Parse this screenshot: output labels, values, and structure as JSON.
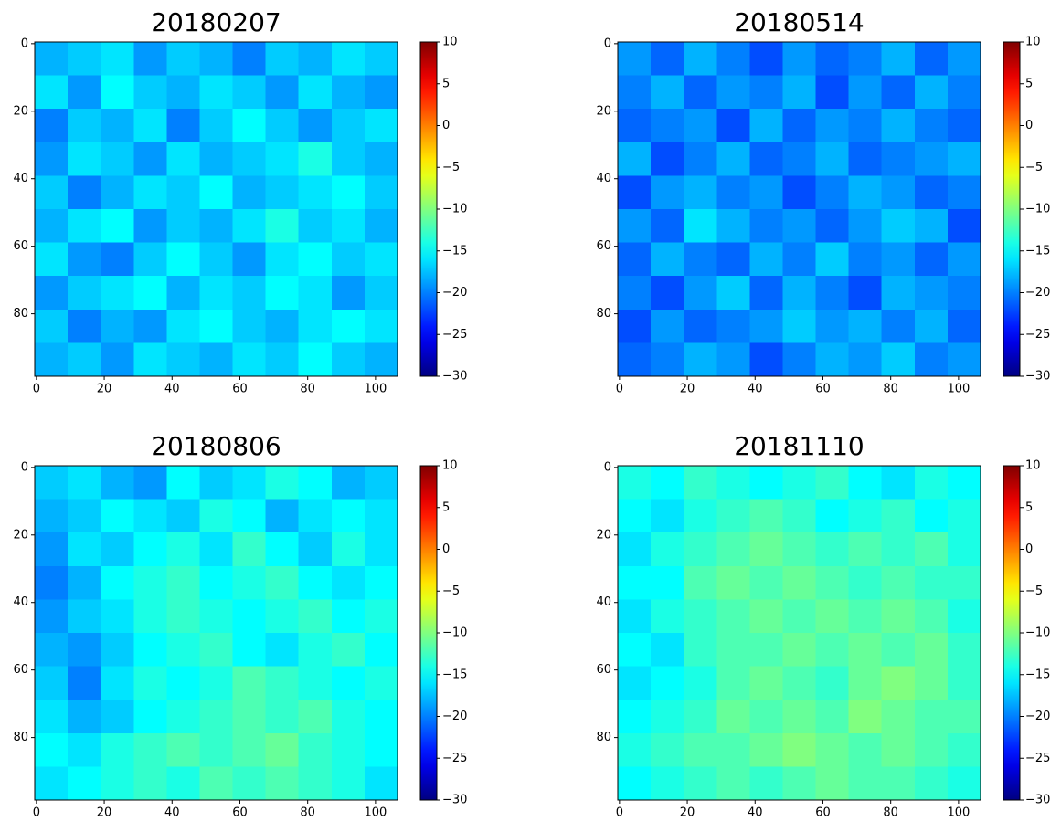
{
  "chart_data": [
    {
      "type": "heatmap",
      "title": "20180207",
      "colormap": "jet",
      "clim": [
        -30,
        10
      ],
      "xlim": [
        -0.5,
        106.5
      ],
      "ylim": [
        98.5,
        -0.5
      ],
      "xticks": [
        0,
        20,
        40,
        60,
        80,
        100
      ],
      "yticks": [
        0,
        20,
        40,
        60,
        80
      ],
      "cticks": [
        10,
        5,
        0,
        {
          "value": -5,
          "label": "−5"
        },
        {
          "value": -10,
          "label": "−10"
        },
        {
          "value": -15,
          "label": "−15"
        },
        {
          "value": -20,
          "label": "−20"
        },
        {
          "value": -25,
          "label": "−25"
        },
        {
          "value": -30,
          "label": "−30"
        }
      ],
      "z": [
        [
          -18,
          -17,
          -16,
          -19,
          -17,
          -18,
          -20,
          -17,
          -18,
          -16,
          -17
        ],
        [
          -16,
          -19,
          -15,
          -17,
          -18,
          -16,
          -17,
          -19,
          -16,
          -18,
          -19
        ],
        [
          -20,
          -17,
          -18,
          -16,
          -20,
          -17,
          -15,
          -17,
          -19,
          -17,
          -16
        ],
        [
          -19,
          -16,
          -17,
          -19,
          -16,
          -18,
          -17,
          -16,
          -14,
          -17,
          -18
        ],
        [
          -17,
          -20,
          -18,
          -16,
          -17,
          -15,
          -18,
          -17,
          -16,
          -15,
          -17
        ],
        [
          -18,
          -16,
          -15,
          -19,
          -17,
          -18,
          -16,
          -14,
          -17,
          -16,
          -18
        ],
        [
          -16,
          -19,
          -20,
          -17,
          -15,
          -17,
          -19,
          -16,
          -15,
          -17,
          -16
        ],
        [
          -19,
          -17,
          -16,
          -15,
          -18,
          -16,
          -17,
          -15,
          -16,
          -19,
          -17
        ],
        [
          -17,
          -20,
          -18,
          -19,
          -16,
          -15,
          -17,
          -18,
          -16,
          -15,
          -16
        ],
        [
          -18,
          -17,
          -19,
          -16,
          -17,
          -18,
          -16,
          -17,
          -15,
          -17,
          -18
        ]
      ]
    },
    {
      "type": "heatmap",
      "title": "20180514",
      "colormap": "jet",
      "clim": [
        -30,
        10
      ],
      "xlim": [
        -0.5,
        106.5
      ],
      "ylim": [
        98.5,
        -0.5
      ],
      "xticks": [
        0,
        20,
        40,
        60,
        80,
        100
      ],
      "yticks": [
        0,
        20,
        40,
        60,
        80
      ],
      "cticks": [
        10,
        5,
        0,
        {
          "value": -5,
          "label": "−5"
        },
        {
          "value": -10,
          "label": "−10"
        },
        {
          "value": -15,
          "label": "−15"
        },
        {
          "value": -20,
          "label": "−20"
        },
        {
          "value": -25,
          "label": "−25"
        },
        {
          "value": -30,
          "label": "−30"
        }
      ],
      "z": [
        [
          -19,
          -21,
          -18,
          -20,
          -22,
          -19,
          -21,
          -20,
          -18,
          -21,
          -19
        ],
        [
          -20,
          -18,
          -21,
          -19,
          -20,
          -18,
          -22,
          -19,
          -21,
          -18,
          -20
        ],
        [
          -21,
          -20,
          -19,
          -22,
          -18,
          -21,
          -19,
          -20,
          -18,
          -20,
          -21
        ],
        [
          -18,
          -22,
          -20,
          -18,
          -21,
          -20,
          -18,
          -21,
          -20,
          -19,
          -18
        ],
        [
          -22,
          -19,
          -18,
          -20,
          -19,
          -22,
          -20,
          -18,
          -19,
          -21,
          -20
        ],
        [
          -19,
          -21,
          -16,
          -18,
          -20,
          -19,
          -21,
          -19,
          -17,
          -18,
          -22
        ],
        [
          -21,
          -18,
          -20,
          -21,
          -18,
          -20,
          -17,
          -20,
          -19,
          -21,
          -19
        ],
        [
          -20,
          -22,
          -19,
          -17,
          -21,
          -18,
          -20,
          -22,
          -18,
          -19,
          -20
        ],
        [
          -22,
          -19,
          -21,
          -20,
          -19,
          -17,
          -19,
          -18,
          -20,
          -18,
          -21
        ],
        [
          -21,
          -20,
          -18,
          -19,
          -22,
          -20,
          -18,
          -19,
          -17,
          -20,
          -19
        ]
      ]
    },
    {
      "type": "heatmap",
      "title": "20180806",
      "colormap": "jet",
      "clim": [
        -30,
        10
      ],
      "xlim": [
        -0.5,
        106.5
      ],
      "ylim": [
        98.5,
        -0.5
      ],
      "xticks": [
        0,
        20,
        40,
        60,
        80,
        100
      ],
      "yticks": [
        0,
        20,
        40,
        60,
        80
      ],
      "cticks": [
        10,
        5,
        0,
        {
          "value": -5,
          "label": "−5"
        },
        {
          "value": -10,
          "label": "−10"
        },
        {
          "value": -15,
          "label": "−15"
        },
        {
          "value": -20,
          "label": "−20"
        },
        {
          "value": -25,
          "label": "−25"
        },
        {
          "value": -30,
          "label": "−30"
        }
      ],
      "z": [
        [
          -17,
          -16,
          -18,
          -19,
          -15,
          -17,
          -16,
          -14,
          -15,
          -18,
          -17
        ],
        [
          -18,
          -17,
          -15,
          -16,
          -17,
          -14,
          -15,
          -18,
          -16,
          -15,
          -16
        ],
        [
          -19,
          -16,
          -17,
          -15,
          -14,
          -16,
          -13,
          -15,
          -17,
          -14,
          -16
        ],
        [
          -20,
          -18,
          -15,
          -14,
          -13,
          -15,
          -14,
          -13,
          -15,
          -16,
          -15
        ],
        [
          -19,
          -17,
          -16,
          -14,
          -13,
          -14,
          -15,
          -14,
          -13,
          -15,
          -14
        ],
        [
          -18,
          -19,
          -17,
          -15,
          -14,
          -13,
          -15,
          -16,
          -14,
          -13,
          -15
        ],
        [
          -17,
          -20,
          -16,
          -14,
          -15,
          -14,
          -12,
          -13,
          -14,
          -15,
          -14
        ],
        [
          -16,
          -18,
          -17,
          -15,
          -14,
          -13,
          -12,
          -13,
          -12,
          -14,
          -15
        ],
        [
          -15,
          -16,
          -14,
          -13,
          -12,
          -13,
          -12,
          -11,
          -13,
          -14,
          -15
        ],
        [
          -16,
          -15,
          -14,
          -13,
          -14,
          -12,
          -13,
          -12,
          -13,
          -14,
          -16
        ]
      ]
    },
    {
      "type": "heatmap",
      "title": "20181110",
      "colormap": "jet",
      "clim": [
        -30,
        10
      ],
      "xlim": [
        -0.5,
        106.5
      ],
      "ylim": [
        98.5,
        -0.5
      ],
      "xticks": [
        0,
        20,
        40,
        60,
        80,
        100
      ],
      "yticks": [
        0,
        20,
        40,
        60,
        80
      ],
      "cticks": [
        10,
        5,
        0,
        {
          "value": -5,
          "label": "−5"
        },
        {
          "value": -10,
          "label": "−10"
        },
        {
          "value": -15,
          "label": "−15"
        },
        {
          "value": -20,
          "label": "−20"
        },
        {
          "value": -25,
          "label": "−25"
        },
        {
          "value": -30,
          "label": "−30"
        }
      ],
      "z": [
        [
          -14,
          -15,
          -13,
          -14,
          -15,
          -14,
          -13,
          -15,
          -16,
          -14,
          -15
        ],
        [
          -15,
          -16,
          -14,
          -13,
          -12,
          -13,
          -15,
          -14,
          -13,
          -15,
          -14
        ],
        [
          -16,
          -14,
          -13,
          -12,
          -11,
          -12,
          -13,
          -12,
          -13,
          -12,
          -14
        ],
        [
          -15,
          -15,
          -12,
          -11,
          -12,
          -11,
          -12,
          -13,
          -12,
          -13,
          -13
        ],
        [
          -16,
          -14,
          -13,
          -12,
          -11,
          -12,
          -11,
          -12,
          -11,
          -12,
          -14
        ],
        [
          -15,
          -16,
          -13,
          -12,
          -12,
          -11,
          -12,
          -11,
          -12,
          -11,
          -13
        ],
        [
          -16,
          -15,
          -14,
          -12,
          -11,
          -12,
          -13,
          -11,
          -10,
          -11,
          -13
        ],
        [
          -15,
          -14,
          -13,
          -11,
          -12,
          -11,
          -12,
          -10,
          -11,
          -12,
          -12
        ],
        [
          -14,
          -13,
          -12,
          -12,
          -11,
          -10,
          -11,
          -12,
          -11,
          -12,
          -13
        ],
        [
          -15,
          -14,
          -13,
          -12,
          -13,
          -12,
          -11,
          -12,
          -12,
          -13,
          -14
        ]
      ]
    }
  ]
}
